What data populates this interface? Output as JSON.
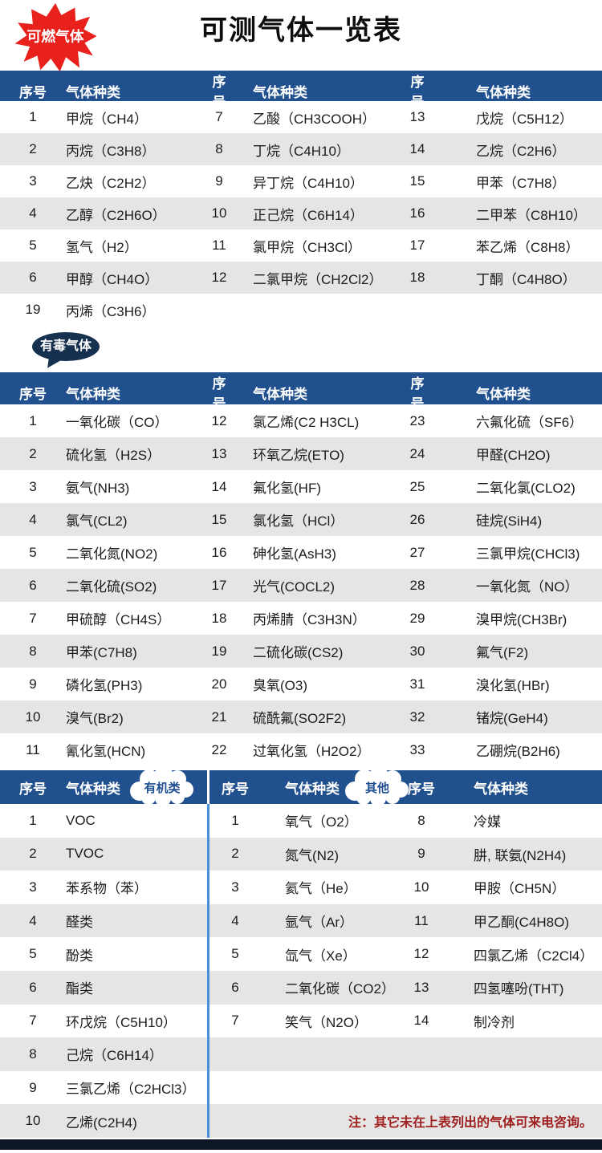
{
  "title": "可测气体一览表",
  "headers": {
    "index": "序号",
    "gas": "气体种类"
  },
  "badges": {
    "combustible": "可燃气体",
    "toxic": "有毒气体",
    "organic": "有机类",
    "other": "其他"
  },
  "note": "注：其它未在上表列出的气体可来电咨询。",
  "colors": {
    "header_blue": "#21508f",
    "badge_navy": "#16304f",
    "badge_red": "#e8211d",
    "stripe_gray": "#e5e5e5",
    "divider_blue": "#4a90d8",
    "note_red": "#a02020",
    "footer_navy": "#0c1624"
  },
  "combustible": {
    "columns": [
      [
        [
          "1",
          "甲烷（CH4）"
        ],
        [
          "2",
          "丙烷（C3H8）"
        ],
        [
          "3",
          "乙炔（C2H2）"
        ],
        [
          "4",
          "乙醇（C2H6O）"
        ],
        [
          "5",
          "氢气（H2）"
        ],
        [
          "6",
          "甲醇（CH4O）"
        ]
      ],
      [
        [
          "7",
          "乙酸（CH3COOH）"
        ],
        [
          "8",
          "丁烷（C4H10）"
        ],
        [
          "9",
          "异丁烷（C4H10）"
        ],
        [
          "10",
          "正己烷（C6H14）"
        ],
        [
          "11",
          "氯甲烷（CH3Cl）"
        ],
        [
          "12",
          "二氯甲烷（CH2Cl2）"
        ]
      ],
      [
        [
          "13",
          "戊烷（C5H12）"
        ],
        [
          "14",
          "乙烷（C2H6）"
        ],
        [
          "15",
          "甲苯（C7H8）"
        ],
        [
          "16",
          "二甲苯（C8H10）"
        ],
        [
          "17",
          "苯乙烯（C8H8）"
        ],
        [
          "18",
          "丁酮（C4H8O）"
        ]
      ]
    ],
    "extra_row": [
      "19",
      "丙烯（C3H6）"
    ]
  },
  "toxic": {
    "columns": [
      [
        [
          "1",
          "一氧化碳（CO）"
        ],
        [
          "2",
          "硫化氢（H2S）"
        ],
        [
          "3",
          "氨气(NH3)"
        ],
        [
          "4",
          "氯气(CL2)"
        ],
        [
          "5",
          "二氧化氮(NO2)"
        ],
        [
          "6",
          "二氧化硫(SO2)"
        ],
        [
          "7",
          "甲硫醇（CH4S）"
        ],
        [
          "8",
          "甲苯(C7H8)"
        ],
        [
          "9",
          "磷化氢(PH3)"
        ],
        [
          "10",
          "溴气(Br2)"
        ],
        [
          "11",
          "氰化氢(HCN)"
        ]
      ],
      [
        [
          "12",
          "氯乙烯(C2 H3CL)"
        ],
        [
          "13",
          "环氧乙烷(ETO)"
        ],
        [
          "14",
          "氟化氢(HF)"
        ],
        [
          "15",
          "氯化氢（HCl）"
        ],
        [
          "16",
          "砷化氢(AsH3)"
        ],
        [
          "17",
          "光气(COCL2)"
        ],
        [
          "18",
          "丙烯腈（C3H3N）"
        ],
        [
          "19",
          "二硫化碳(CS2)"
        ],
        [
          "20",
          "臭氧(O3)"
        ],
        [
          "21",
          "硫酰氟(SO2F2)"
        ],
        [
          "22",
          "过氧化氢（H2O2）"
        ]
      ],
      [
        [
          "23",
          "六氟化硫（SF6）"
        ],
        [
          "24",
          "甲醛(CH2O)"
        ],
        [
          "25",
          "二氧化氯(CLO2)"
        ],
        [
          "26",
          "硅烷(SiH4)"
        ],
        [
          "27",
          "三氯甲烷(CHCl3)"
        ],
        [
          "28",
          "一氧化氮（NO）"
        ],
        [
          "29",
          "溴甲烷(CH3Br)"
        ],
        [
          "30",
          "氟气(F2)"
        ],
        [
          "31",
          "溴化氢(HBr)"
        ],
        [
          "32",
          "锗烷(GeH4)"
        ],
        [
          "33",
          "乙硼烷(B2H6)"
        ]
      ]
    ]
  },
  "organic_other": {
    "organic": [
      [
        "1",
        "VOC"
      ],
      [
        "2",
        "TVOC"
      ],
      [
        "3",
        "苯系物（苯）"
      ],
      [
        "4",
        "醛类"
      ],
      [
        "5",
        "酚类"
      ],
      [
        "6",
        "酯类"
      ],
      [
        "7",
        "环戊烷（C5H10）"
      ],
      [
        "8",
        "己烷（C6H14）"
      ],
      [
        "9",
        "三氯乙烯（C2HCl3）"
      ],
      [
        "10",
        "乙烯(C2H4)"
      ]
    ],
    "other_left": [
      [
        "1",
        "氧气（O2）"
      ],
      [
        "2",
        "氮气(N2)"
      ],
      [
        "3",
        "氦气（He）"
      ],
      [
        "4",
        "氩气（Ar）"
      ],
      [
        "5",
        "氙气（Xe）"
      ],
      [
        "6",
        "二氧化碳（CO2）"
      ],
      [
        "7",
        "笑气（N2O）"
      ]
    ],
    "other_right": [
      [
        "8",
        "冷媒"
      ],
      [
        "9",
        "肼, 联氨(N2H4)"
      ],
      [
        "10",
        "甲胺（CH5N）"
      ],
      [
        "11",
        "甲乙酮(C4H8O)"
      ],
      [
        "12",
        "四氯乙烯（C2Cl4）"
      ],
      [
        "13",
        "四氢噻吩(THT)"
      ],
      [
        "14",
        "制冷剂"
      ]
    ]
  }
}
